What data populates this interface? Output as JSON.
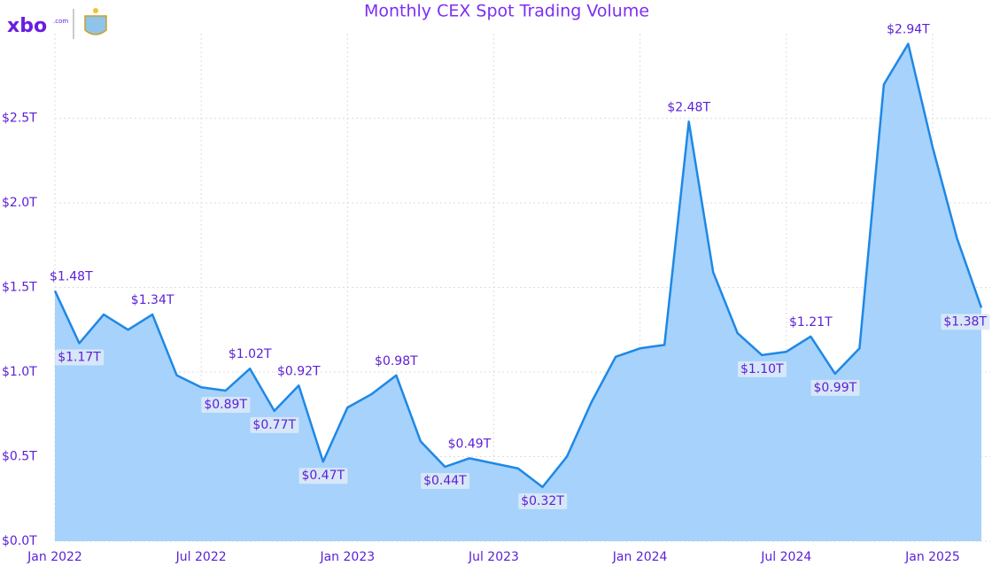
{
  "logo": {
    "text": "xbo",
    "suffix": ".com"
  },
  "chart_data": {
    "type": "area",
    "title": "Monthly CEX Spot Trading Volume",
    "categories": [
      "Jan 2022",
      null,
      null,
      null,
      null,
      null,
      "Jul 2022",
      null,
      null,
      null,
      null,
      null,
      "Jan 2023",
      null,
      null,
      null,
      null,
      null,
      "Jul 2023",
      null,
      null,
      null,
      null,
      null,
      "Jan 2024",
      null,
      null,
      null,
      null,
      null,
      "Jul 2024",
      null,
      null,
      null,
      null,
      null,
      "Jan 2025",
      null,
      null
    ],
    "values": [
      1.48,
      1.17,
      1.34,
      1.25,
      1.34,
      0.98,
      0.91,
      0.89,
      1.02,
      0.77,
      0.92,
      0.47,
      0.79,
      0.87,
      0.98,
      0.59,
      0.44,
      0.49,
      0.46,
      0.43,
      0.32,
      0.5,
      0.82,
      1.09,
      1.14,
      1.16,
      2.48,
      1.59,
      1.23,
      1.1,
      1.12,
      1.21,
      0.99,
      1.14,
      2.7,
      2.94,
      2.33,
      1.79,
      1.38
    ],
    "value_labels": [
      "$1.48T",
      "$1.17T",
      null,
      null,
      "$1.34T",
      null,
      null,
      "$0.89T",
      "$1.02T",
      "$0.77T",
      "$0.92T",
      "$0.47T",
      null,
      null,
      "$0.98T",
      null,
      "$0.44T",
      "$0.49T",
      null,
      null,
      "$0.32T",
      null,
      null,
      null,
      null,
      null,
      "$2.48T",
      null,
      null,
      "$1.10T",
      null,
      "$1.21T",
      "$0.99T",
      null,
      null,
      "$2.94T",
      null,
      null,
      "$1.38T"
    ],
    "color": "#1e88e5",
    "fill": "#a6d2fb",
    "label_color": "#5b1fd6",
    "ylim": [
      0,
      3.0
    ],
    "yticks": [
      {
        "value": 0,
        "label": "$0.0T"
      },
      {
        "value": 0.5,
        "label": "$0.5T"
      },
      {
        "value": 1.0,
        "label": "$1.0T"
      },
      {
        "value": 1.5,
        "label": "$1.5T"
      },
      {
        "value": 2.0,
        "label": "$2.0T"
      },
      {
        "value": 2.5,
        "label": "$2.5T"
      }
    ],
    "grid": true
  }
}
